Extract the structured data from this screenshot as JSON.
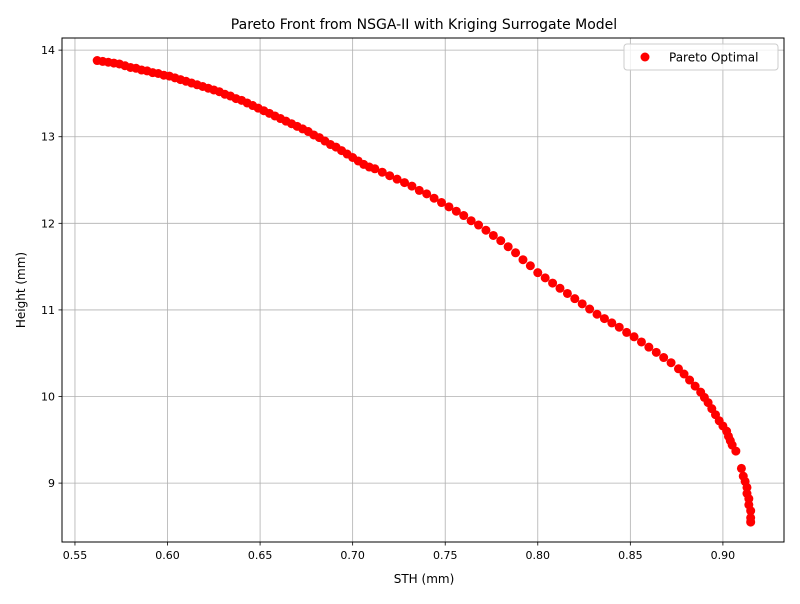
{
  "chart_data": {
    "type": "scatter",
    "title": "Pareto Front from NSGA-II with Kriging Surrogate Model",
    "xlabel": "STH (mm)",
    "ylabel": "Height (mm)",
    "xlim": [
      0.543,
      0.933
    ],
    "ylim": [
      8.32,
      14.14
    ],
    "xticks": [
      0.55,
      0.6,
      0.65,
      0.7,
      0.75,
      0.8,
      0.85,
      0.9
    ],
    "xtick_labels": [
      "0.55",
      "0.60",
      "0.65",
      "0.70",
      "0.75",
      "0.80",
      "0.85",
      "0.90"
    ],
    "yticks": [
      9,
      10,
      11,
      12,
      13,
      14
    ],
    "ytick_labels": [
      "9",
      "10",
      "11",
      "12",
      "13",
      "14"
    ],
    "grid": true,
    "legend_position": "top-right",
    "series": [
      {
        "name": "Pareto Optimal",
        "color": "#ff0000",
        "x": [
          0.562,
          0.565,
          0.568,
          0.571,
          0.574,
          0.577,
          0.58,
          0.583,
          0.586,
          0.589,
          0.592,
          0.595,
          0.598,
          0.601,
          0.604,
          0.607,
          0.61,
          0.613,
          0.616,
          0.619,
          0.622,
          0.625,
          0.628,
          0.631,
          0.634,
          0.637,
          0.64,
          0.643,
          0.646,
          0.649,
          0.652,
          0.655,
          0.658,
          0.661,
          0.664,
          0.667,
          0.67,
          0.673,
          0.676,
          0.679,
          0.682,
          0.685,
          0.688,
          0.691,
          0.694,
          0.697,
          0.7,
          0.703,
          0.706,
          0.709,
          0.712,
          0.716,
          0.72,
          0.724,
          0.728,
          0.732,
          0.736,
          0.74,
          0.744,
          0.748,
          0.752,
          0.756,
          0.76,
          0.764,
          0.768,
          0.772,
          0.776,
          0.78,
          0.784,
          0.788,
          0.792,
          0.796,
          0.8,
          0.804,
          0.808,
          0.812,
          0.816,
          0.82,
          0.824,
          0.828,
          0.832,
          0.836,
          0.84,
          0.844,
          0.848,
          0.852,
          0.856,
          0.86,
          0.864,
          0.868,
          0.872,
          0.876,
          0.879,
          0.882,
          0.885,
          0.888,
          0.89,
          0.892,
          0.894,
          0.896,
          0.898,
          0.9,
          0.902,
          0.903,
          0.904,
          0.905,
          0.907,
          0.91,
          0.911,
          0.912,
          0.913,
          0.913,
          0.914,
          0.914,
          0.915,
          0.915,
          0.915
        ],
        "y": [
          13.88,
          13.87,
          13.86,
          13.85,
          13.84,
          13.82,
          13.8,
          13.79,
          13.77,
          13.76,
          13.74,
          13.73,
          13.71,
          13.7,
          13.68,
          13.66,
          13.64,
          13.62,
          13.6,
          13.58,
          13.56,
          13.54,
          13.52,
          13.49,
          13.47,
          13.44,
          13.42,
          13.39,
          13.36,
          13.33,
          13.3,
          13.27,
          13.24,
          13.21,
          13.18,
          13.15,
          13.12,
          13.09,
          13.06,
          13.02,
          12.99,
          12.95,
          12.91,
          12.88,
          12.84,
          12.8,
          12.76,
          12.72,
          12.68,
          12.65,
          12.63,
          12.59,
          12.55,
          12.51,
          12.47,
          12.43,
          12.38,
          12.34,
          12.29,
          12.24,
          12.19,
          12.14,
          12.09,
          12.03,
          11.98,
          11.92,
          11.86,
          11.8,
          11.73,
          11.66,
          11.58,
          11.51,
          11.43,
          11.37,
          11.31,
          11.25,
          11.19,
          11.13,
          11.07,
          11.01,
          10.95,
          10.9,
          10.85,
          10.8,
          10.74,
          10.69,
          10.63,
          10.57,
          10.51,
          10.45,
          10.39,
          10.32,
          10.26,
          10.19,
          10.12,
          10.05,
          9.99,
          9.93,
          9.86,
          9.79,
          9.72,
          9.66,
          9.6,
          9.54,
          9.49,
          9.44,
          9.37,
          9.17,
          9.08,
          9.02,
          8.95,
          8.88,
          8.82,
          8.75,
          8.68,
          8.6,
          8.55
        ]
      }
    ]
  }
}
